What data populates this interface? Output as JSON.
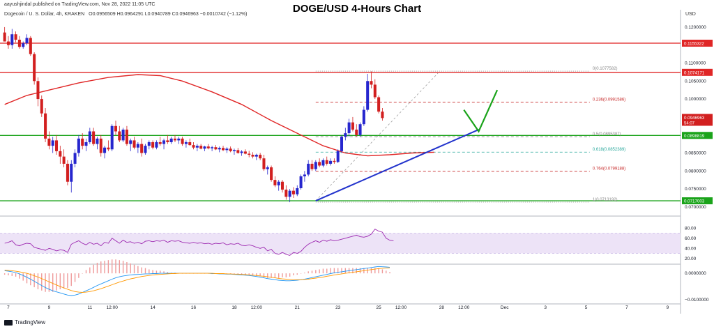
{
  "header": {
    "publisher": "aayushjindal published on TradingView.com, Nov 28, 2022 11:05 UTC",
    "symbol": "Dogecoin / U. S. Dollar, 4h, KRAKEN",
    "ohlc": "O0.0956509 H0.0964291 L0.0940789 C0.0946963 −0.0010742 (−1.12%)",
    "title": "DOGE/USD 4-Hours Chart"
  },
  "footer": {
    "brand": "TradingView"
  },
  "colors": {
    "bull": "#2626ce",
    "bear": "#d21f1f",
    "support": "#1aa31a",
    "resistance": "#e02626",
    "trend": "#2233cc",
    "ma": "#e02626",
    "rsi": "#9c27b0",
    "rsi_band": "#ede3f7",
    "macd": "#2196f3",
    "signal": "#ff9800",
    "hist_pos": "#ef9a9a",
    "hist_neg": "#ef9a9a",
    "fib": "#c62828",
    "fib_green": "#26a69a"
  },
  "chart_data": {
    "type": "candlestick",
    "currency": "USD",
    "yticks": [
      0.12,
      0.11,
      0.105,
      0.1,
      0.095,
      0.09,
      0.085,
      0.08,
      0.075,
      0.07
    ],
    "ytick_labels": [
      "0.1200000",
      "0.1100000",
      "0.1050000",
      "0.1000000",
      "0.0950000",
      "0.0900000",
      "0.0850000",
      "0.0800000",
      "0.0750000",
      "0.0700000"
    ],
    "ylim": [
      0.069,
      0.1225
    ],
    "xticks": [
      {
        "label": "7",
        "bar": 1
      },
      {
        "label": "9",
        "bar": 12
      },
      {
        "label": "11",
        "bar": 23
      },
      {
        "label": "12:00",
        "bar": 29
      },
      {
        "label": "14",
        "bar": 40
      },
      {
        "label": "16",
        "bar": 51
      },
      {
        "label": "18",
        "bar": 62
      },
      {
        "label": "12:00",
        "bar": 68
      },
      {
        "label": "21",
        "bar": 79
      },
      {
        "label": "23",
        "bar": 90
      },
      {
        "label": "25",
        "bar": 101
      },
      {
        "label": "12:00",
        "bar": 107
      },
      {
        "label": "28",
        "bar": 118
      },
      {
        "label": "12:00",
        "bar": 124
      },
      {
        "label": "Dec",
        "bar": 135
      },
      {
        "label": "3",
        "bar": 146
      },
      {
        "label": "5",
        "bar": 157
      },
      {
        "label": "7",
        "bar": 168
      },
      {
        "label": "9",
        "bar": 179
      }
    ],
    "xlim_bars": [
      0,
      183
    ],
    "candles": [
      [
        0.1185,
        0.12,
        0.116,
        0.116
      ],
      [
        0.116,
        0.1175,
        0.114,
        0.115
      ],
      [
        0.115,
        0.1195,
        0.114,
        0.118
      ],
      [
        0.118,
        0.1188,
        0.1158,
        0.1165
      ],
      [
        0.1165,
        0.1175,
        0.114,
        0.1145
      ],
      [
        0.1145,
        0.116,
        0.114,
        0.1155
      ],
      [
        0.1155,
        0.118,
        0.115,
        0.117
      ],
      [
        0.117,
        0.1175,
        0.112,
        0.1125
      ],
      [
        0.1125,
        0.113,
        0.104,
        0.105
      ],
      [
        0.105,
        0.106,
        0.098,
        0.1
      ],
      [
        0.1,
        0.101,
        0.095,
        0.096
      ],
      [
        0.096,
        0.0975,
        0.088,
        0.089
      ],
      [
        0.089,
        0.091,
        0.086,
        0.087
      ],
      [
        0.087,
        0.0895,
        0.085,
        0.0885
      ],
      [
        0.0885,
        0.09,
        0.0845,
        0.0855
      ],
      [
        0.0855,
        0.087,
        0.082,
        0.084
      ],
      [
        0.084,
        0.086,
        0.081,
        0.082
      ],
      [
        0.082,
        0.083,
        0.076,
        0.077
      ],
      [
        0.077,
        0.083,
        0.074,
        0.082
      ],
      [
        0.082,
        0.086,
        0.081,
        0.085
      ],
      [
        0.085,
        0.09,
        0.084,
        0.089
      ],
      [
        0.089,
        0.0905,
        0.086,
        0.087
      ],
      [
        0.087,
        0.089,
        0.0855,
        0.088
      ],
      [
        0.088,
        0.092,
        0.0875,
        0.091
      ],
      [
        0.091,
        0.092,
        0.087,
        0.0875
      ],
      [
        0.0875,
        0.0895,
        0.086,
        0.089
      ],
      [
        0.089,
        0.09,
        0.084,
        0.085
      ],
      [
        0.085,
        0.087,
        0.0835,
        0.0865
      ],
      [
        0.0865,
        0.0885,
        0.0855,
        0.086
      ],
      [
        0.086,
        0.093,
        0.0855,
        0.0925
      ],
      [
        0.0925,
        0.094,
        0.09,
        0.091
      ],
      [
        0.091,
        0.0925,
        0.088,
        0.0885
      ],
      [
        0.0885,
        0.092,
        0.088,
        0.0915
      ],
      [
        0.0915,
        0.0925,
        0.087,
        0.0875
      ],
      [
        0.0875,
        0.089,
        0.0855,
        0.0885
      ],
      [
        0.0885,
        0.0895,
        0.086,
        0.0865
      ],
      [
        0.0865,
        0.088,
        0.085,
        0.0875
      ],
      [
        0.0875,
        0.089,
        0.084,
        0.085
      ],
      [
        0.085,
        0.0875,
        0.0845,
        0.087
      ],
      [
        0.087,
        0.0885,
        0.086,
        0.088
      ],
      [
        0.088,
        0.0885,
        0.086,
        0.0865
      ],
      [
        0.0865,
        0.0885,
        0.086,
        0.088
      ],
      [
        0.088,
        0.0895,
        0.087,
        0.0875
      ],
      [
        0.0875,
        0.089,
        0.086,
        0.0885
      ],
      [
        0.0885,
        0.09,
        0.0875,
        0.088
      ],
      [
        0.088,
        0.0895,
        0.0875,
        0.089
      ],
      [
        0.089,
        0.09,
        0.088,
        0.0885
      ],
      [
        0.0885,
        0.0895,
        0.0875,
        0.089
      ],
      [
        0.089,
        0.0895,
        0.087,
        0.0875
      ],
      [
        0.0875,
        0.0885,
        0.0865,
        0.088
      ],
      [
        0.088,
        0.089,
        0.087,
        0.0872
      ],
      [
        0.0872,
        0.088,
        0.086,
        0.0865
      ],
      [
        0.0865,
        0.0875,
        0.0855,
        0.087
      ],
      [
        0.087,
        0.0875,
        0.086,
        0.0862
      ],
      [
        0.0862,
        0.087,
        0.0855,
        0.0868
      ],
      [
        0.0868,
        0.0875,
        0.086,
        0.0863
      ],
      [
        0.0863,
        0.087,
        0.0855,
        0.0866
      ],
      [
        0.0866,
        0.0872,
        0.0858,
        0.086
      ],
      [
        0.086,
        0.0868,
        0.0852,
        0.0864
      ],
      [
        0.0864,
        0.087,
        0.0855,
        0.0858
      ],
      [
        0.0858,
        0.0866,
        0.085,
        0.0862
      ],
      [
        0.0862,
        0.0868,
        0.0852,
        0.0855
      ],
      [
        0.0855,
        0.0862,
        0.0845,
        0.0858
      ],
      [
        0.0858,
        0.0864,
        0.0848,
        0.085
      ],
      [
        0.085,
        0.0858,
        0.0842,
        0.0854
      ],
      [
        0.0854,
        0.086,
        0.0846,
        0.0848
      ],
      [
        0.0848,
        0.0856,
        0.0838,
        0.0845
      ],
      [
        0.0845,
        0.0852,
        0.0835,
        0.084
      ],
      [
        0.084,
        0.0848,
        0.083,
        0.0845
      ],
      [
        0.0845,
        0.085,
        0.083,
        0.0835
      ],
      [
        0.0835,
        0.0845,
        0.08,
        0.0805
      ],
      [
        0.0805,
        0.0815,
        0.079,
        0.081
      ],
      [
        0.081,
        0.0815,
        0.077,
        0.0775
      ],
      [
        0.0775,
        0.0785,
        0.0755,
        0.076
      ],
      [
        0.076,
        0.0775,
        0.0745,
        0.077
      ],
      [
        0.077,
        0.0775,
        0.074,
        0.0748
      ],
      [
        0.0748,
        0.076,
        0.072,
        0.0728
      ],
      [
        0.0728,
        0.075,
        0.0713,
        0.0745
      ],
      [
        0.0745,
        0.0755,
        0.0725,
        0.0735
      ],
      [
        0.0735,
        0.076,
        0.073,
        0.0752
      ],
      [
        0.0752,
        0.079,
        0.0748,
        0.0785
      ],
      [
        0.0785,
        0.08,
        0.077,
        0.079
      ],
      [
        0.079,
        0.083,
        0.0785,
        0.082
      ],
      [
        0.082,
        0.083,
        0.08,
        0.0805
      ],
      [
        0.0805,
        0.083,
        0.08,
        0.0825
      ],
      [
        0.0825,
        0.0835,
        0.081,
        0.0815
      ],
      [
        0.0815,
        0.0835,
        0.081,
        0.083
      ],
      [
        0.083,
        0.084,
        0.0815,
        0.082
      ],
      [
        0.082,
        0.0835,
        0.0815,
        0.0828
      ],
      [
        0.0828,
        0.0835,
        0.082,
        0.0825
      ],
      [
        0.0825,
        0.086,
        0.0822,
        0.0855
      ],
      [
        0.0855,
        0.09,
        0.085,
        0.0895
      ],
      [
        0.0895,
        0.092,
        0.0885,
        0.0905
      ],
      [
        0.0905,
        0.0945,
        0.0895,
        0.0935
      ],
      [
        0.0935,
        0.095,
        0.091,
        0.0915
      ],
      [
        0.0915,
        0.093,
        0.0895,
        0.09
      ],
      [
        0.09,
        0.0935,
        0.0895,
        0.093
      ],
      [
        0.093,
        0.098,
        0.0925,
        0.097
      ],
      [
        0.097,
        0.107,
        0.0965,
        0.105
      ],
      [
        0.105,
        0.1077,
        0.103,
        0.104
      ],
      [
        0.104,
        0.1055,
        0.1,
        0.1005
      ],
      [
        0.1005,
        0.101,
        0.096,
        0.0965
      ],
      [
        0.0965,
        0.0975,
        0.094,
        0.0947
      ]
    ],
    "moving_average": [
      [
        0,
        0.0985
      ],
      [
        6,
        0.101
      ],
      [
        12,
        0.1025
      ],
      [
        20,
        0.1045
      ],
      [
        28,
        0.106
      ],
      [
        36,
        0.1068
      ],
      [
        42,
        0.1065
      ],
      [
        48,
        0.105
      ],
      [
        56,
        0.102
      ],
      [
        64,
        0.0985
      ],
      [
        72,
        0.094
      ],
      [
        80,
        0.09
      ],
      [
        86,
        0.087
      ],
      [
        92,
        0.085
      ],
      [
        98,
        0.0842
      ],
      [
        104,
        0.0845
      ],
      [
        110,
        0.085
      ],
      [
        116,
        0.0852
      ]
    ],
    "horizontal_levels": [
      {
        "price": 0.1155322,
        "label": "0.1155322",
        "color": "resistance"
      },
      {
        "price": 0.1074171,
        "label": "0.1074171",
        "color": "resistance"
      },
      {
        "price": 0.0898819,
        "label": "0.0898819",
        "color": "support"
      },
      {
        "price": 0.0717003,
        "label": "0.0717003",
        "color": "support"
      }
    ],
    "current_price": {
      "price": 0.0946963,
      "label": "0.0946963",
      "countdown": "54:07"
    },
    "fibonacci": [
      {
        "ratio": "0",
        "price": 0.1077582,
        "label": "0(0.1077582)",
        "color": "#888888",
        "style": "dotted"
      },
      {
        "ratio": "0.236",
        "price": 0.0991586,
        "label": "0.236(0.0991586)",
        "color": "fib",
        "style": "dashed"
      },
      {
        "ratio": "0.5",
        "price": 0.0895387,
        "label": "0.5(0.0895387)",
        "color": "#888888",
        "style": "dashed"
      },
      {
        "ratio": "0.618",
        "price": 0.0852389,
        "label": "0.618(0.0852389)",
        "color": "fib_green",
        "style": "dashed"
      },
      {
        "ratio": "0.764",
        "price": 0.0799188,
        "label": "0.764(0.0799188)",
        "color": "fib",
        "style": "dashed"
      },
      {
        "ratio": "1",
        "price": 0.0713192,
        "label": "1(0.0713192)",
        "color": "#888888",
        "style": "dotted"
      }
    ],
    "fib_range_bars": [
      84,
      158
    ],
    "trendline": {
      "from": [
        84,
        0.0717
      ],
      "to": [
        128,
        0.0915
      ]
    },
    "fib_diagonal": {
      "from": [
        84,
        0.0717
      ],
      "to": [
        117,
        0.1072
      ]
    },
    "projection": [
      [
        124,
        0.097
      ],
      [
        128,
        0.091
      ],
      [
        133,
        0.1025
      ]
    ],
    "rsi": {
      "yticks": [
        80,
        60,
        40,
        20
      ],
      "ytick_labels": [
        "80.00",
        "60.00",
        "40.00",
        "20.00"
      ],
      "ylim": [
        10,
        90
      ],
      "band": [
        30,
        70
      ],
      "values": [
        50,
        52,
        55,
        47,
        45,
        48,
        50,
        49,
        42,
        40,
        38,
        36,
        40,
        38,
        35,
        37,
        36,
        32,
        48,
        52,
        55,
        50,
        47,
        52,
        48,
        50,
        45,
        52,
        50,
        60,
        55,
        50,
        56,
        52,
        53,
        50,
        52,
        49,
        54,
        55,
        53,
        55,
        54,
        56,
        52,
        55,
        54,
        55,
        52,
        51,
        50,
        52,
        50,
        51,
        49,
        50,
        48,
        50,
        49,
        51,
        47,
        49,
        48,
        50,
        46,
        45,
        47,
        45,
        42,
        40,
        42,
        35,
        38,
        30,
        28,
        32,
        28,
        26,
        32,
        30,
        34,
        42,
        48,
        52,
        55,
        52,
        56,
        54,
        57,
        55,
        56,
        58,
        60,
        62,
        64,
        66,
        63,
        62,
        64,
        68,
        78,
        74,
        72,
        60,
        56,
        55
      ]
    },
    "macd": {
      "yticks": [
        0,
        -0.01
      ],
      "ytick_labels": [
        "0.0000000",
        "−0.0100000"
      ],
      "ylim": [
        -0.0105,
        0.0032
      ],
      "macd": [
        0.001,
        0.0008,
        0.0006,
        0.0003,
        -0.0002,
        -0.0008,
        -0.0015,
        -0.0022,
        -0.003,
        -0.0038,
        -0.0046,
        -0.0054,
        -0.006,
        -0.0066,
        -0.007,
        -0.0074,
        -0.0078,
        -0.0082,
        -0.0084,
        -0.0082,
        -0.0078,
        -0.0072,
        -0.0066,
        -0.006,
        -0.0053,
        -0.0046,
        -0.004,
        -0.0034,
        -0.0028,
        -0.0022,
        -0.0017,
        -0.0013,
        -0.001,
        -0.0008,
        -0.0006,
        -0.0005,
        -0.0004,
        -0.0003,
        -0.0002,
        -0.0002,
        -0.0001,
        -0.0001,
        0,
        0,
        0,
        0,
        0,
        0,
        0,
        0,
        0,
        0,
        0,
        0,
        0,
        0,
        -0.0001,
        -0.0001,
        -0.0002,
        -0.0002,
        -0.0003,
        -0.0003,
        -0.0004,
        -0.0005,
        -0.0006,
        -0.0007,
        -0.0008,
        -0.001,
        -0.0012,
        -0.0014,
        -0.0017,
        -0.002,
        -0.0022,
        -0.0024,
        -0.0026,
        -0.0027,
        -0.0028,
        -0.0028,
        -0.0027,
        -0.0026,
        -0.0024,
        -0.0022,
        -0.0019,
        -0.0016,
        -0.0013,
        -0.001,
        -0.0007,
        -0.0004,
        -0.0001,
        0.0002,
        0.0004,
        0.0006,
        0.0008,
        0.001,
        0.0012,
        0.0014,
        0.0016,
        0.0018,
        0.002,
        0.0022,
        0.0024,
        0.0026,
        0.0025,
        0.0024,
        0.0023
      ],
      "signal": [
        0.0012,
        0.0011,
        0.001,
        0.0008,
        0.0006,
        0.0003,
        0,
        -0.0004,
        -0.0009,
        -0.0014,
        -0.002,
        -0.0026,
        -0.0032,
        -0.0038,
        -0.0044,
        -0.005,
        -0.0055,
        -0.006,
        -0.0065,
        -0.0069,
        -0.0071,
        -0.0072,
        -0.0071,
        -0.0069,
        -0.0066,
        -0.0062,
        -0.0058,
        -0.0053,
        -0.0048,
        -0.0043,
        -0.0038,
        -0.0033,
        -0.0029,
        -0.0025,
        -0.0021,
        -0.0018,
        -0.0015,
        -0.0012,
        -0.001,
        -0.0008,
        -0.0006,
        -0.0005,
        -0.0004,
        -0.0003,
        -0.0002,
        -0.0001,
        -0.0001,
        0,
        0,
        0,
        0,
        0,
        0,
        0,
        0,
        0,
        0,
        -0.0001,
        -0.0001,
        -0.0001,
        -0.0002,
        -0.0002,
        -0.0003,
        -0.0003,
        -0.0004,
        -0.0005,
        -0.0006,
        -0.0007,
        -0.0008,
        -0.001,
        -0.0011,
        -0.0013,
        -0.0015,
        -0.0017,
        -0.0019,
        -0.0021,
        -0.0022,
        -0.0023,
        -0.0024,
        -0.0024,
        -0.0024,
        -0.0023,
        -0.0022,
        -0.002,
        -0.0018,
        -0.0016,
        -0.0014,
        -0.0011,
        -0.0009,
        -0.0006,
        -0.0004,
        -0.0002,
        0,
        0.0002,
        0.0004,
        0.0006,
        0.0008,
        0.001,
        0.0012,
        0.0014,
        0.0016,
        0.0018,
        0.0019,
        0.002,
        0.0021
      ]
    }
  }
}
